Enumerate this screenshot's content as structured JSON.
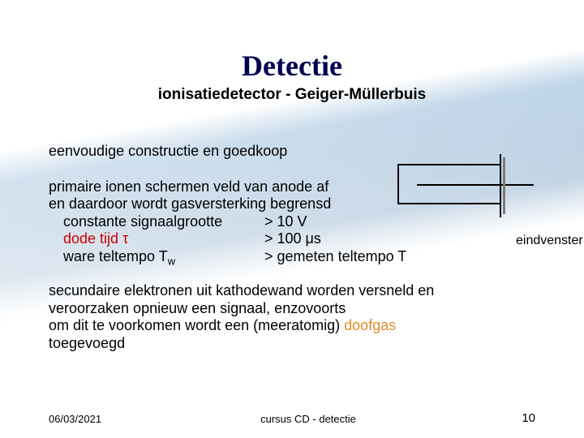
{
  "title": "Detectie",
  "subtitle": "ionisatiedetector - Geiger-Müllerbuis",
  "line1": "eenvoudige constructie en goedkoop",
  "para2": {
    "l1": "primaire ionen schermen veld van anode af",
    "l2": "en daardoor wordt gasversterking begrensd",
    "l3_left": "constante signaalgrootte",
    "l3_right": "> 10 V",
    "l4_left_a": "dode tijd ",
    "l4_left_b": "τ",
    "l4_right": "> 100 μs",
    "l5_left_a": "ware teltempo T",
    "l5_left_b": "w",
    "l5_right": "> gemeten teltempo T"
  },
  "para3": {
    "l1": "secundaire elektronen uit kathodewand worden versneld en",
    "l2": "veroorzaken opnieuw een signaal, enzovoorts",
    "l3_a": "om dit te voorkomen wordt  een (meeratomig) ",
    "l3_b": "doofgas",
    "l4": "toegevoegd"
  },
  "diagram": {
    "label": "eindvenster",
    "tube": {
      "width": 128,
      "height": 50,
      "anode_length": 104,
      "anode_thickness": 2,
      "window_bar_width": 3,
      "window_line_extra": 12
    },
    "colors": {
      "outline": "#000000",
      "anode": "#000000",
      "window_line": "#000000",
      "window_bar": "#7a7a7a"
    }
  },
  "footer": {
    "date": "06/03/2021",
    "center": "cursus CD - detectie",
    "page": "10"
  },
  "colors": {
    "title": "#000050",
    "red": "#cc0000",
    "orange": "#e08a2a"
  }
}
